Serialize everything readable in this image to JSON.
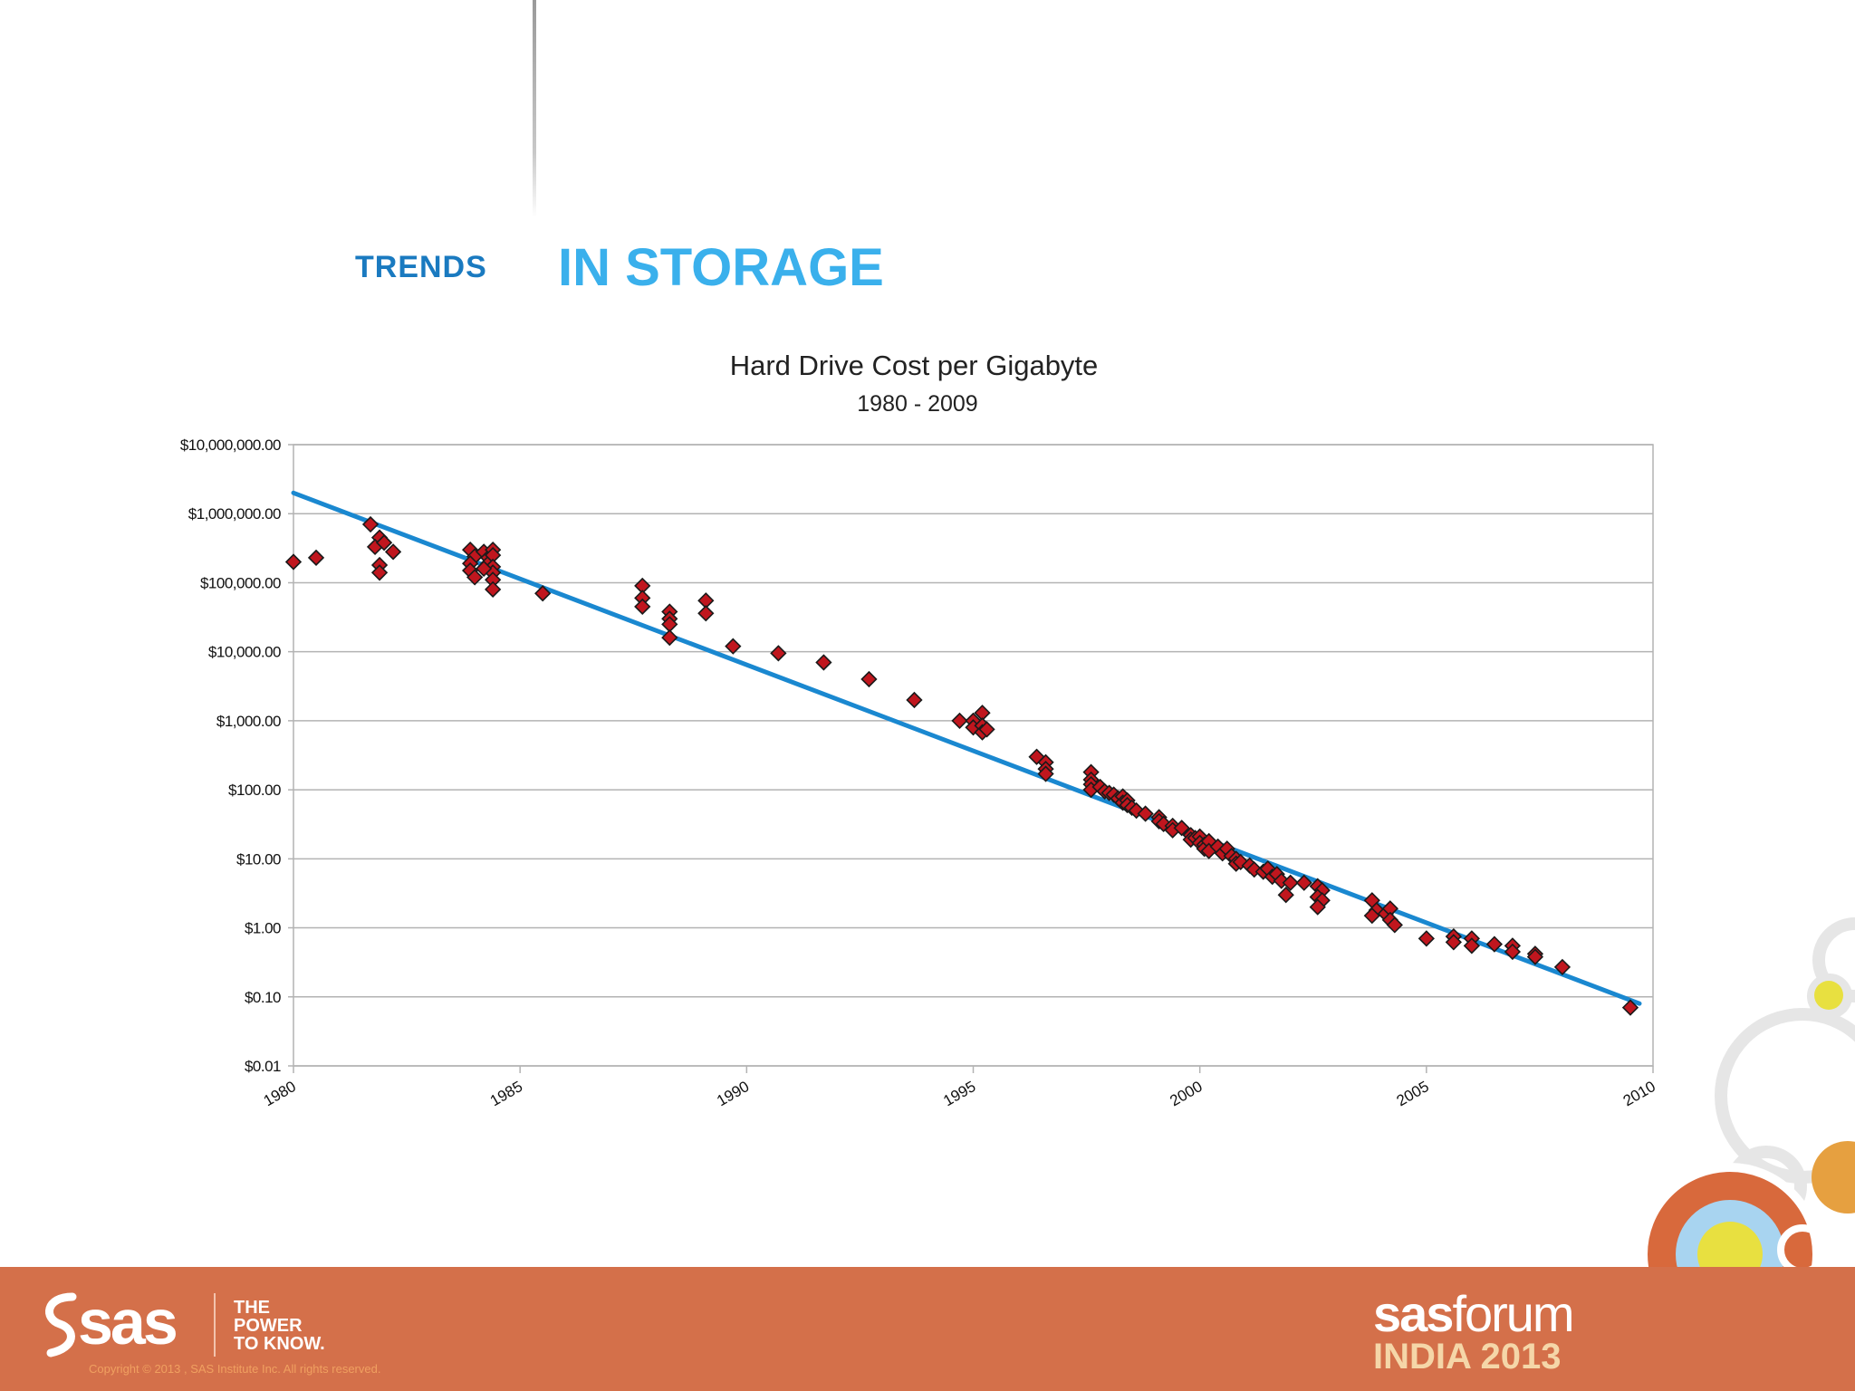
{
  "slide": {
    "title_part1": "TRENDS",
    "title_part2": "IN STORAGE",
    "title_part1_color": "#1a7ac0",
    "title_part2_color": "#3ab0ec"
  },
  "chart_data": {
    "type": "scatter",
    "title": "Hard Drive Cost per Gigabyte",
    "subtitle": "1980 - 2009",
    "xlabel": "",
    "ylabel": "",
    "xlim": [
      1980,
      2010
    ],
    "ylim": [
      0.01,
      10000000
    ],
    "y_scale": "log",
    "x_ticks": [
      "1980",
      "1985",
      "1990",
      "1995",
      "2000",
      "2005",
      "2010"
    ],
    "y_ticks": [
      "$10,000,000.00",
      "$1,000,000.00",
      "$100,000.00",
      "$10,000.00",
      "$1,000.00",
      "$100.00",
      "$10.00",
      "$1.00",
      "$0.10",
      "$0.01"
    ],
    "grid": true,
    "legend": "none",
    "marker_color": "#c0161e",
    "trendline_color": "#1a88d0",
    "trendline": [
      {
        "x": 1980,
        "y": 2000000
      },
      {
        "x": 2009.7,
        "y": 0.08
      }
    ],
    "points": [
      {
        "x": 1980.0,
        "y": 200000
      },
      {
        "x": 1980.5,
        "y": 230000
      },
      {
        "x": 1981.7,
        "y": 700000
      },
      {
        "x": 1981.9,
        "y": 450000
      },
      {
        "x": 1981.8,
        "y": 330000
      },
      {
        "x": 1982.0,
        "y": 380000
      },
      {
        "x": 1981.9,
        "y": 180000
      },
      {
        "x": 1981.9,
        "y": 140000
      },
      {
        "x": 1982.2,
        "y": 280000
      },
      {
        "x": 1983.9,
        "y": 300000
      },
      {
        "x": 1984.0,
        "y": 240000
      },
      {
        "x": 1983.9,
        "y": 190000
      },
      {
        "x": 1983.9,
        "y": 150000
      },
      {
        "x": 1984.0,
        "y": 120000
      },
      {
        "x": 1984.2,
        "y": 280000
      },
      {
        "x": 1984.3,
        "y": 230000
      },
      {
        "x": 1984.3,
        "y": 190000
      },
      {
        "x": 1984.4,
        "y": 300000
      },
      {
        "x": 1984.4,
        "y": 250000
      },
      {
        "x": 1984.4,
        "y": 170000
      },
      {
        "x": 1984.4,
        "y": 140000
      },
      {
        "x": 1984.4,
        "y": 110000
      },
      {
        "x": 1984.4,
        "y": 80000
      },
      {
        "x": 1984.2,
        "y": 160000
      },
      {
        "x": 1985.5,
        "y": 70000
      },
      {
        "x": 1987.7,
        "y": 90000
      },
      {
        "x": 1987.7,
        "y": 60000
      },
      {
        "x": 1987.7,
        "y": 45000
      },
      {
        "x": 1988.3,
        "y": 38000
      },
      {
        "x": 1988.3,
        "y": 30000
      },
      {
        "x": 1988.3,
        "y": 25000
      },
      {
        "x": 1988.3,
        "y": 16000
      },
      {
        "x": 1989.1,
        "y": 55000
      },
      {
        "x": 1989.1,
        "y": 36000
      },
      {
        "x": 1989.7,
        "y": 12000
      },
      {
        "x": 1990.7,
        "y": 9500
      },
      {
        "x": 1991.7,
        "y": 7000
      },
      {
        "x": 1992.7,
        "y": 4000
      },
      {
        "x": 1993.7,
        "y": 2000
      },
      {
        "x": 1994.7,
        "y": 1000
      },
      {
        "x": 1995.0,
        "y": 1000
      },
      {
        "x": 1995.0,
        "y": 800
      },
      {
        "x": 1995.2,
        "y": 1300
      },
      {
        "x": 1995.2,
        "y": 850
      },
      {
        "x": 1995.2,
        "y": 680
      },
      {
        "x": 1995.3,
        "y": 750
      },
      {
        "x": 1996.4,
        "y": 300
      },
      {
        "x": 1996.6,
        "y": 250
      },
      {
        "x": 1996.6,
        "y": 200
      },
      {
        "x": 1996.6,
        "y": 170
      },
      {
        "x": 1997.6,
        "y": 180
      },
      {
        "x": 1997.6,
        "y": 140
      },
      {
        "x": 1997.6,
        "y": 120
      },
      {
        "x": 1997.6,
        "y": 100
      },
      {
        "x": 1997.8,
        "y": 110
      },
      {
        "x": 1997.9,
        "y": 95
      },
      {
        "x": 1998.0,
        "y": 90
      },
      {
        "x": 1998.1,
        "y": 85
      },
      {
        "x": 1998.2,
        "y": 75
      },
      {
        "x": 1998.3,
        "y": 80
      },
      {
        "x": 1998.3,
        "y": 65
      },
      {
        "x": 1998.4,
        "y": 70
      },
      {
        "x": 1998.4,
        "y": 60
      },
      {
        "x": 1998.5,
        "y": 55
      },
      {
        "x": 1998.6,
        "y": 50
      },
      {
        "x": 1998.8,
        "y": 45
      },
      {
        "x": 1999.1,
        "y": 40
      },
      {
        "x": 1999.1,
        "y": 35
      },
      {
        "x": 1999.2,
        "y": 32
      },
      {
        "x": 1999.4,
        "y": 30
      },
      {
        "x": 1999.4,
        "y": 26
      },
      {
        "x": 1999.6,
        "y": 28
      },
      {
        "x": 1999.8,
        "y": 22
      },
      {
        "x": 1999.8,
        "y": 19
      },
      {
        "x": 1999.9,
        "y": 20
      },
      {
        "x": 2000.0,
        "y": 21
      },
      {
        "x": 2000.0,
        "y": 17
      },
      {
        "x": 2000.1,
        "y": 16
      },
      {
        "x": 2000.1,
        "y": 14
      },
      {
        "x": 2000.2,
        "y": 18
      },
      {
        "x": 2000.2,
        "y": 13
      },
      {
        "x": 2000.4,
        "y": 15
      },
      {
        "x": 2000.5,
        "y": 12
      },
      {
        "x": 2000.6,
        "y": 14
      },
      {
        "x": 2000.7,
        "y": 11
      },
      {
        "x": 2000.8,
        "y": 10
      },
      {
        "x": 2000.8,
        "y": 8.5
      },
      {
        "x": 2000.9,
        "y": 9
      },
      {
        "x": 2001.1,
        "y": 8
      },
      {
        "x": 2001.2,
        "y": 7
      },
      {
        "x": 2001.4,
        "y": 6.5
      },
      {
        "x": 2001.5,
        "y": 7.2
      },
      {
        "x": 2001.6,
        "y": 5.5
      },
      {
        "x": 2001.7,
        "y": 6
      },
      {
        "x": 2001.8,
        "y": 4.8
      },
      {
        "x": 2001.9,
        "y": 3
      },
      {
        "x": 2002.0,
        "y": 4.5
      },
      {
        "x": 2002.3,
        "y": 4.5
      },
      {
        "x": 2002.6,
        "y": 4
      },
      {
        "x": 2002.7,
        "y": 3.5
      },
      {
        "x": 2002.6,
        "y": 2.8
      },
      {
        "x": 2002.7,
        "y": 2.5
      },
      {
        "x": 2002.6,
        "y": 2.0
      },
      {
        "x": 2003.8,
        "y": 2.5
      },
      {
        "x": 2003.9,
        "y": 1.8
      },
      {
        "x": 2003.8,
        "y": 1.5
      },
      {
        "x": 2004.1,
        "y": 1.6
      },
      {
        "x": 2004.2,
        "y": 1.9
      },
      {
        "x": 2004.2,
        "y": 1.3
      },
      {
        "x": 2004.3,
        "y": 1.1
      },
      {
        "x": 2005.0,
        "y": 0.7
      },
      {
        "x": 2005.6,
        "y": 0.75
      },
      {
        "x": 2005.6,
        "y": 0.62
      },
      {
        "x": 2006.0,
        "y": 0.7
      },
      {
        "x": 2006.0,
        "y": 0.55
      },
      {
        "x": 2006.5,
        "y": 0.58
      },
      {
        "x": 2006.9,
        "y": 0.55
      },
      {
        "x": 2006.9,
        "y": 0.45
      },
      {
        "x": 2007.4,
        "y": 0.42
      },
      {
        "x": 2007.4,
        "y": 0.38
      },
      {
        "x": 2008.0,
        "y": 0.27
      },
      {
        "x": 2009.5,
        "y": 0.07
      }
    ]
  },
  "footer": {
    "logo": "sas",
    "tagline": [
      "THE",
      "POWER",
      "TO KNOW."
    ],
    "copyright": "Copyright © 2013 , SAS Institute Inc. All rights reserved.",
    "event_brand": "sas",
    "event_word": "forum",
    "event_country": "INDIA",
    "event_year": "2013",
    "bar_color": "#d4704a",
    "event_line2_color": "#f5d6a8"
  }
}
